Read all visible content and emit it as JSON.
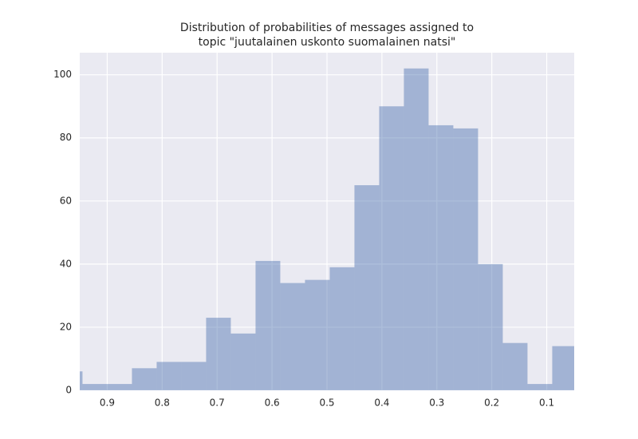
{
  "chart_data": {
    "type": "histogram",
    "title": [
      "Distribution of probabilities of messages assigned to",
      "topic \"juutalainen uskonto suomalainen natsi\""
    ],
    "bins": [
      0.99,
      0.945,
      0.9,
      0.855,
      0.81,
      0.765,
      0.72,
      0.675,
      0.63,
      0.585,
      0.54,
      0.495,
      0.45,
      0.405,
      0.36,
      0.315,
      0.27,
      0.225,
      0.18,
      0.135,
      0.09,
      0.045
    ],
    "counts": [
      6,
      2,
      2,
      7,
      9,
      9,
      23,
      18,
      41,
      34,
      35,
      39,
      65,
      90,
      102,
      84,
      83,
      40,
      15,
      2,
      14
    ],
    "color": "#4c72b0",
    "opacity": 0.45,
    "xlim": [
      0.95,
      0.05
    ],
    "xticks": [
      0.9,
      0.8,
      0.7,
      0.6,
      0.5,
      0.4,
      0.3,
      0.2,
      0.1
    ],
    "ylim": [
      0,
      107
    ],
    "yticks": [
      0,
      20,
      40,
      60,
      80,
      100
    ],
    "grid": true
  }
}
